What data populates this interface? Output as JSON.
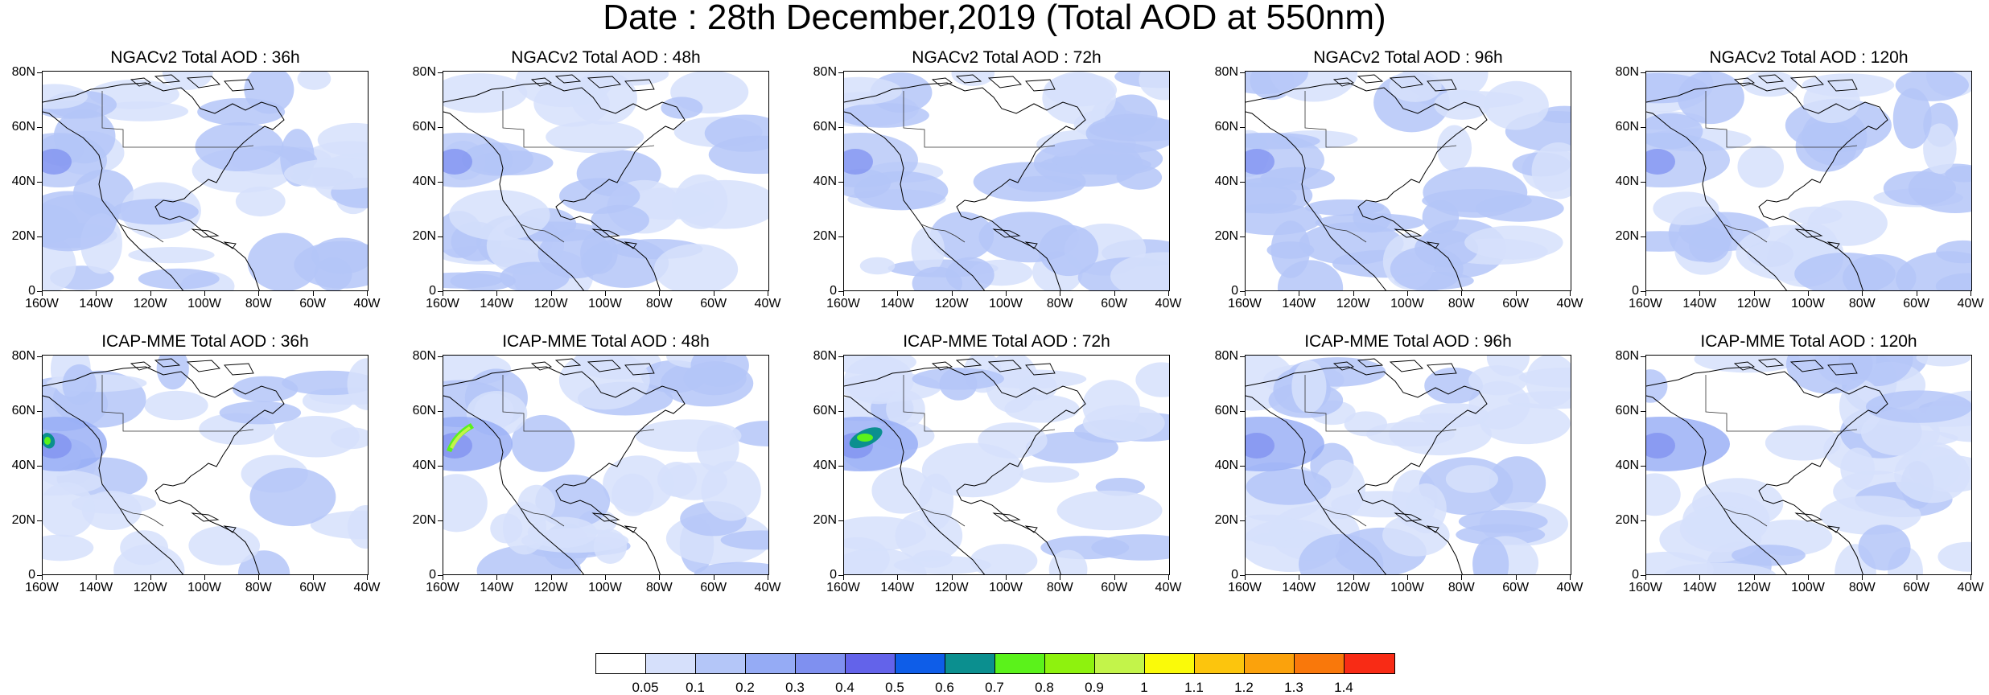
{
  "title": "Date : 28th December,2019 (Total AOD at 550nm)",
  "y_ticks": [
    "0",
    "20N",
    "40N",
    "60N",
    "80N"
  ],
  "x_ticks": [
    "160W",
    "140W",
    "120W",
    "100W",
    "80W",
    "60W",
    "40W"
  ],
  "panels": [
    {
      "title": "NGACv2 Total AOD : 36h",
      "hotspots": []
    },
    {
      "title": "NGACv2 Total AOD : 48h",
      "hotspots": []
    },
    {
      "title": "NGACv2 Total AOD : 72h",
      "hotspots": []
    },
    {
      "title": "NGACv2 Total AOD : 96h",
      "hotspots": []
    },
    {
      "title": "NGACv2 Total AOD : 120h",
      "hotspots": []
    },
    {
      "title": "ICAP-MME Total AOD : 36h",
      "hotspots": [
        "green"
      ]
    },
    {
      "title": "ICAP-MME Total AOD : 48h",
      "hotspots": [
        "yellow-green"
      ]
    },
    {
      "title": "ICAP-MME Total AOD : 72h",
      "hotspots": [
        "green"
      ]
    },
    {
      "title": "ICAP-MME Total AOD : 96h",
      "hotspots": []
    },
    {
      "title": "ICAP-MME Total AOD : 120h",
      "hotspots": []
    }
  ],
  "colorbar": {
    "colors": [
      "#ffffff",
      "#d6e0fb",
      "#b4c6f8",
      "#95abf5",
      "#7f90f0",
      "#6363ea",
      "#0e5de8",
      "#0b8f8f",
      "#5bf21b",
      "#8ef20e",
      "#c3f44a",
      "#fafa09",
      "#fcc50d",
      "#fba20c",
      "#f9780b",
      "#f82b15"
    ],
    "labels": [
      "0.05",
      "0.1",
      "0.2",
      "0.3",
      "0.4",
      "0.5",
      "0.6",
      "0.7",
      "0.8",
      "0.9",
      "1",
      "1.1",
      "1.2",
      "1.3",
      "1.4"
    ]
  }
}
